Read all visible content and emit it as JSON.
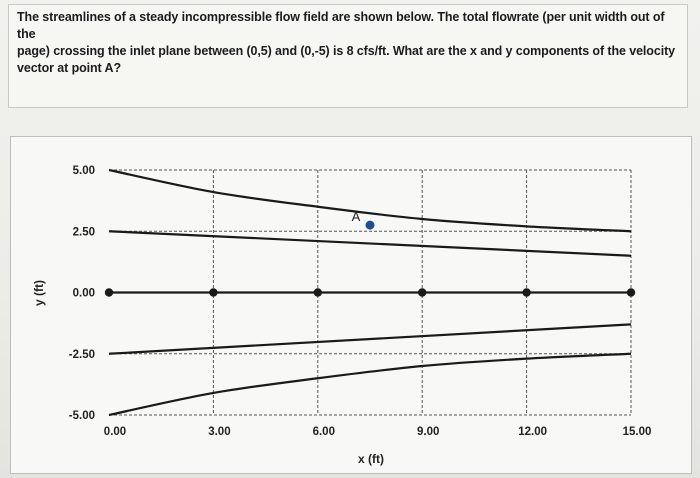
{
  "question": {
    "line1": "The streamlines of a steady incompressible flow field are shown below. The total flowrate (per unit width out of the",
    "line2": "page) crossing the inlet plane between (0,5) and (0,-5) is 8 cfs/ft. What are the x and y components of the velocity",
    "line3": "vector at point A?"
  },
  "chart_data": {
    "type": "line",
    "title": "",
    "xlabel": "x (ft)",
    "ylabel": "y (ft)",
    "xlim": [
      0,
      15
    ],
    "ylim": [
      -5,
      5
    ],
    "x_ticks": [
      "0.00",
      "3.00",
      "6.00",
      "9.00",
      "12.00",
      "15.00"
    ],
    "y_ticks": [
      "5.00",
      "2.50",
      "0.00",
      "-2.50",
      "-5.00"
    ],
    "grid": "dashed",
    "series": [
      {
        "x": [
          0,
          3,
          6,
          9,
          12,
          15
        ],
        "y": [
          5.0,
          4.1,
          3.5,
          3.0,
          2.7,
          2.5
        ]
      },
      {
        "x": [
          0,
          15
        ],
        "y": [
          2.5,
          1.5
        ]
      },
      {
        "x": [
          0,
          3,
          6,
          9,
          12,
          15
        ],
        "y": [
          0,
          0,
          0,
          0,
          0,
          0
        ],
        "markers": true
      },
      {
        "x": [
          0,
          15
        ],
        "y": [
          -2.5,
          -1.3
        ]
      },
      {
        "x": [
          0,
          3,
          6,
          9,
          12,
          15
        ],
        "y": [
          -5.0,
          -4.1,
          -3.5,
          -3.0,
          -2.7,
          -2.5
        ]
      }
    ],
    "points": [
      {
        "label": "A",
        "x": 7.5,
        "y": 2.75
      }
    ],
    "colors": {
      "line": "#1a1a1a",
      "point_a": "#1f4e8c",
      "grid": "#555555"
    }
  }
}
